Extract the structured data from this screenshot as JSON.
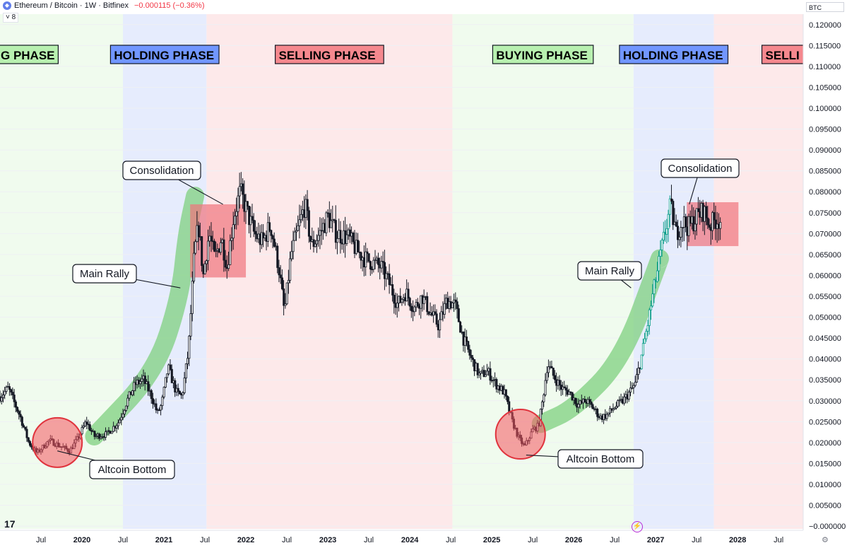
{
  "header": {
    "symbol_title": "Ethereum / Bitcoin · 1W · Bitfinex",
    "change": "−0.000115 (−0.36%)",
    "collapse_label": "˅ 8",
    "currency_badge": "BTC",
    "coin_icon": "ethereum-coin-icon"
  },
  "footer": {
    "logo_icon": "tradingview-logo-icon",
    "bolt_icon": "lightning-bolt-icon",
    "gear_icon": "gear-icon"
  },
  "colors": {
    "buying": "#f0fbee",
    "holding": "#e6ecfd",
    "selling": "#fde9ea",
    "buying_label": "#b8f0b0",
    "holding_label": "#7196ff",
    "selling_label": "#f5888e",
    "candle": "#131722",
    "rally_candle": "#0c9d8a",
    "band": "#7fd07f",
    "circle": "#f6565f",
    "box": "#f0747c"
  },
  "chart_data": {
    "type": "candlestick",
    "title": "Ethereum / Bitcoin · 1W · Bitfinex",
    "x_axis": {
      "ticks": [
        "Jul",
        "2020",
        "Jul",
        "2021",
        "Jul",
        "2022",
        "Jul",
        "2023",
        "Jul",
        "2024",
        "Jul",
        "2025",
        "Jul",
        "2026",
        "Jul",
        "2027",
        "Jul",
        "2028",
        "Jul"
      ],
      "range": [
        2019.0,
        2028.8
      ]
    },
    "y_axis": {
      "range": [
        -0.001,
        0.1225
      ],
      "ticks": [
        "0.120000",
        "0.115000",
        "0.110000",
        "0.105000",
        "0.100000",
        "0.095000",
        "0.090000",
        "0.085000",
        "0.080000",
        "0.075000",
        "0.070000",
        "0.065000",
        "0.060000",
        "0.055000",
        "0.050000",
        "0.045000",
        "0.040000",
        "0.035000",
        "0.030000",
        "0.025000",
        "0.020000",
        "0.015000",
        "0.010000",
        "0.005000",
        "−0.000000"
      ]
    },
    "price_path": [
      [
        2019.0,
        0.031
      ],
      [
        2019.1,
        0.033
      ],
      [
        2019.25,
        0.026
      ],
      [
        2019.35,
        0.02
      ],
      [
        2019.45,
        0.0175
      ],
      [
        2019.6,
        0.0205
      ],
      [
        2019.75,
        0.019
      ],
      [
        2019.85,
        0.018
      ],
      [
        2019.95,
        0.021
      ],
      [
        2020.05,
        0.025
      ],
      [
        2020.15,
        0.0215
      ],
      [
        2020.3,
        0.022
      ],
      [
        2020.45,
        0.025
      ],
      [
        2020.55,
        0.03
      ],
      [
        2020.65,
        0.034
      ],
      [
        2020.75,
        0.035
      ],
      [
        2020.85,
        0.031
      ],
      [
        2020.92,
        0.027
      ],
      [
        2020.97,
        0.029
      ],
      [
        2021.05,
        0.038
      ],
      [
        2021.15,
        0.032
      ],
      [
        2021.22,
        0.031
      ],
      [
        2021.3,
        0.042
      ],
      [
        2021.37,
        0.065
      ],
      [
        2021.42,
        0.072
      ],
      [
        2021.48,
        0.06
      ],
      [
        2021.55,
        0.07
      ],
      [
        2021.62,
        0.064
      ],
      [
        2021.7,
        0.069
      ],
      [
        2021.77,
        0.062
      ],
      [
        2021.85,
        0.074
      ],
      [
        2021.93,
        0.08
      ],
      [
        2022.0,
        0.076
      ],
      [
        2022.1,
        0.07
      ],
      [
        2022.2,
        0.068
      ],
      [
        2022.3,
        0.072
      ],
      [
        2022.4,
        0.062
      ],
      [
        2022.47,
        0.051
      ],
      [
        2022.55,
        0.065
      ],
      [
        2022.65,
        0.072
      ],
      [
        2022.72,
        0.077
      ],
      [
        2022.8,
        0.067
      ],
      [
        2022.9,
        0.07
      ],
      [
        2023.0,
        0.074
      ],
      [
        2023.1,
        0.07
      ],
      [
        2023.25,
        0.069
      ],
      [
        2023.35,
        0.066
      ],
      [
        2023.45,
        0.064
      ],
      [
        2023.55,
        0.063
      ],
      [
        2023.65,
        0.062
      ],
      [
        2023.75,
        0.058
      ],
      [
        2023.85,
        0.053
      ],
      [
        2023.95,
        0.056
      ],
      [
        2024.05,
        0.052
      ],
      [
        2024.15,
        0.055
      ],
      [
        2024.25,
        0.051
      ],
      [
        2024.35,
        0.048
      ],
      [
        2024.45,
        0.054
      ],
      [
        2024.55,
        0.053
      ],
      [
        2024.65,
        0.045
      ],
      [
        2024.75,
        0.04
      ],
      [
        2024.85,
        0.036
      ],
      [
        2024.95,
        0.037
      ],
      [
        2025.05,
        0.034
      ],
      [
        2025.15,
        0.032
      ],
      [
        2025.25,
        0.025
      ],
      [
        2025.33,
        0.021
      ],
      [
        2025.4,
        0.019
      ],
      [
        2025.5,
        0.023
      ],
      [
        2025.57,
        0.024
      ],
      [
        2025.62,
        0.03
      ],
      [
        2025.68,
        0.039
      ],
      [
        2025.75,
        0.036
      ],
      [
        2025.85,
        0.033
      ],
      [
        2025.95,
        0.032
      ],
      [
        2026.05,
        0.029
      ],
      [
        2026.15,
        0.03
      ],
      [
        2026.25,
        0.028
      ],
      [
        2026.32,
        0.026
      ],
      [
        2026.4,
        0.0265
      ],
      [
        2026.5,
        0.0285
      ],
      [
        2026.6,
        0.03
      ],
      [
        2026.68,
        0.032
      ],
      [
        2026.75,
        0.034
      ],
      [
        2026.82,
        0.04
      ],
      [
        2026.9,
        0.048
      ],
      [
        2026.97,
        0.056
      ],
      [
        2027.05,
        0.064
      ],
      [
        2027.12,
        0.071
      ],
      [
        2027.18,
        0.0765
      ],
      [
        2027.25,
        0.07
      ],
      [
        2027.32,
        0.073
      ],
      [
        2027.4,
        0.0715
      ],
      [
        2027.5,
        0.074
      ],
      [
        2027.58,
        0.0755
      ],
      [
        2027.66,
        0.072
      ],
      [
        2027.74,
        0.0735
      ],
      [
        2027.8,
        0.073
      ]
    ],
    "rally_segment": [
      2026.82,
      2027.18
    ],
    "phases": [
      {
        "type": "buying",
        "label": "BUYING PHASE",
        "shown_label": "G PHASE",
        "start": 2019.0,
        "end": 2020.5
      },
      {
        "type": "holding",
        "label": "HOLDING PHASE",
        "start": 2020.5,
        "end": 2021.52
      },
      {
        "type": "selling",
        "label": "SELLING PHASE",
        "start": 2021.52,
        "end": 2024.52
      },
      {
        "type": "buying",
        "label": "BUYING PHASE",
        "start": 2024.52,
        "end": 2026.73
      },
      {
        "type": "holding",
        "label": "HOLDING PHASE",
        "start": 2026.73,
        "end": 2027.71
      },
      {
        "type": "selling",
        "label": "SELLING PHASE",
        "shown_label": "SELLI",
        "start": 2027.71,
        "end": 2028.8
      }
    ],
    "annotations": [
      {
        "kind": "callout",
        "text": "Consolidation",
        "target_x": 2021.72,
        "target_y": 0.077
      },
      {
        "kind": "callout",
        "text": "Main Rally",
        "target_x": 2021.2,
        "target_y": 0.057
      },
      {
        "kind": "callout",
        "text": "Altcoin Bottom",
        "target_x": 2019.7,
        "target_y": 0.018
      },
      {
        "kind": "callout",
        "text": "Altcoin Bottom",
        "target_x": 2025.42,
        "target_y": 0.017
      },
      {
        "kind": "callout",
        "text": "Main Rally",
        "target_x": 2026.7,
        "target_y": 0.057
      },
      {
        "kind": "callout",
        "text": "Consolidation",
        "target_x": 2027.41,
        "target_y": 0.077
      },
      {
        "kind": "circle",
        "x": 2019.7,
        "y": 0.02
      },
      {
        "kind": "circle",
        "x": 2025.35,
        "y": 0.022
      },
      {
        "kind": "box",
        "x0": 2021.32,
        "x1": 2022.0,
        "y0": 0.0595,
        "y1": 0.077
      },
      {
        "kind": "box",
        "x0": 2027.38,
        "x1": 2028.01,
        "y0": 0.067,
        "y1": 0.0775
      },
      {
        "kind": "band",
        "points": [
          [
            2020.15,
            0.0215
          ],
          [
            2020.9,
            0.037
          ],
          [
            2021.2,
            0.055
          ],
          [
            2021.28,
            0.07
          ],
          [
            2021.38,
            0.079
          ]
        ]
      },
      {
        "kind": "band",
        "points": [
          [
            2025.6,
            0.0245
          ],
          [
            2026.0,
            0.028
          ],
          [
            2026.6,
            0.04
          ],
          [
            2027.05,
            0.064
          ]
        ]
      }
    ]
  }
}
